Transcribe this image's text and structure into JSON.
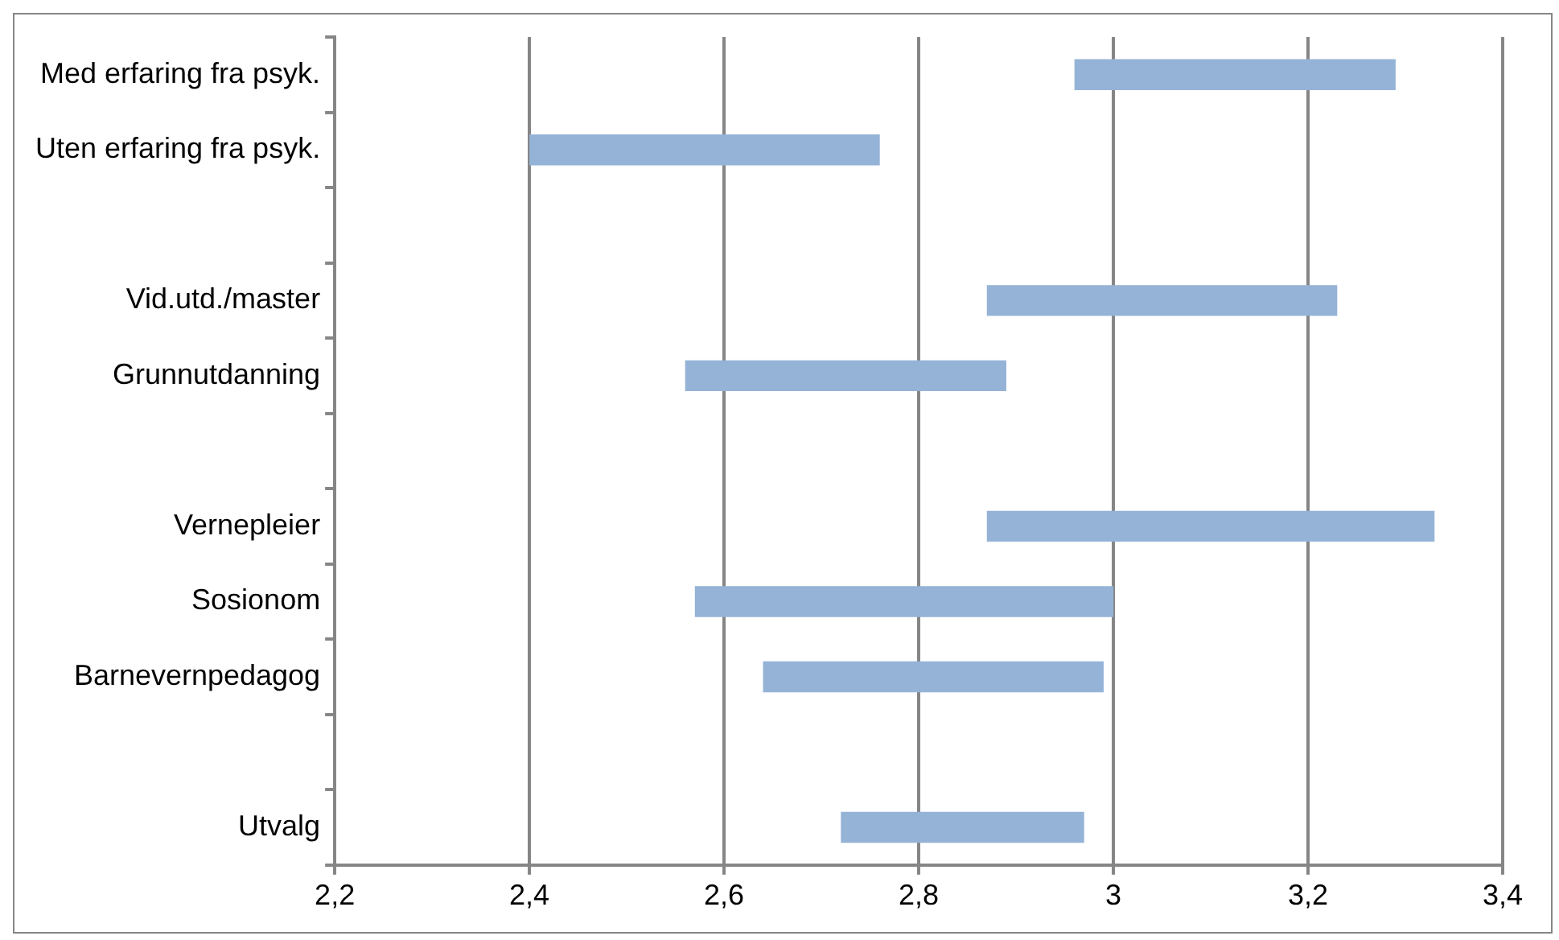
{
  "chart_data": {
    "type": "bar",
    "orientation": "horizontal",
    "categories": [
      "Med erfaring fra psyk.",
      "Uten erfaring fra psyk.",
      null,
      "Vid.utd./master",
      "Grunnutdanning",
      null,
      "Vernepleier",
      "Sosionom",
      "Barnevernpedagog",
      null,
      "Utvalg"
    ],
    "base": [
      2.96,
      2.4,
      null,
      2.87,
      2.56,
      null,
      2.87,
      2.57,
      2.64,
      null,
      2.72
    ],
    "values": [
      0.33,
      0.36,
      null,
      0.36,
      0.33,
      null,
      0.46,
      0.43,
      0.35,
      null,
      0.25
    ],
    "color": "#95b3d7",
    "xlim": [
      2.2,
      3.4
    ],
    "xticks": [
      {
        "value": 2.2,
        "label": "2,2"
      },
      {
        "value": 2.4,
        "label": "2,4"
      },
      {
        "value": 2.6,
        "label": "2,6"
      },
      {
        "value": 2.8,
        "label": "2,8"
      },
      3,
      {
        "value": 3.2,
        "label": "3,2"
      },
      {
        "value": 3.4,
        "label": "3,4"
      }
    ],
    "grid": "x"
  }
}
